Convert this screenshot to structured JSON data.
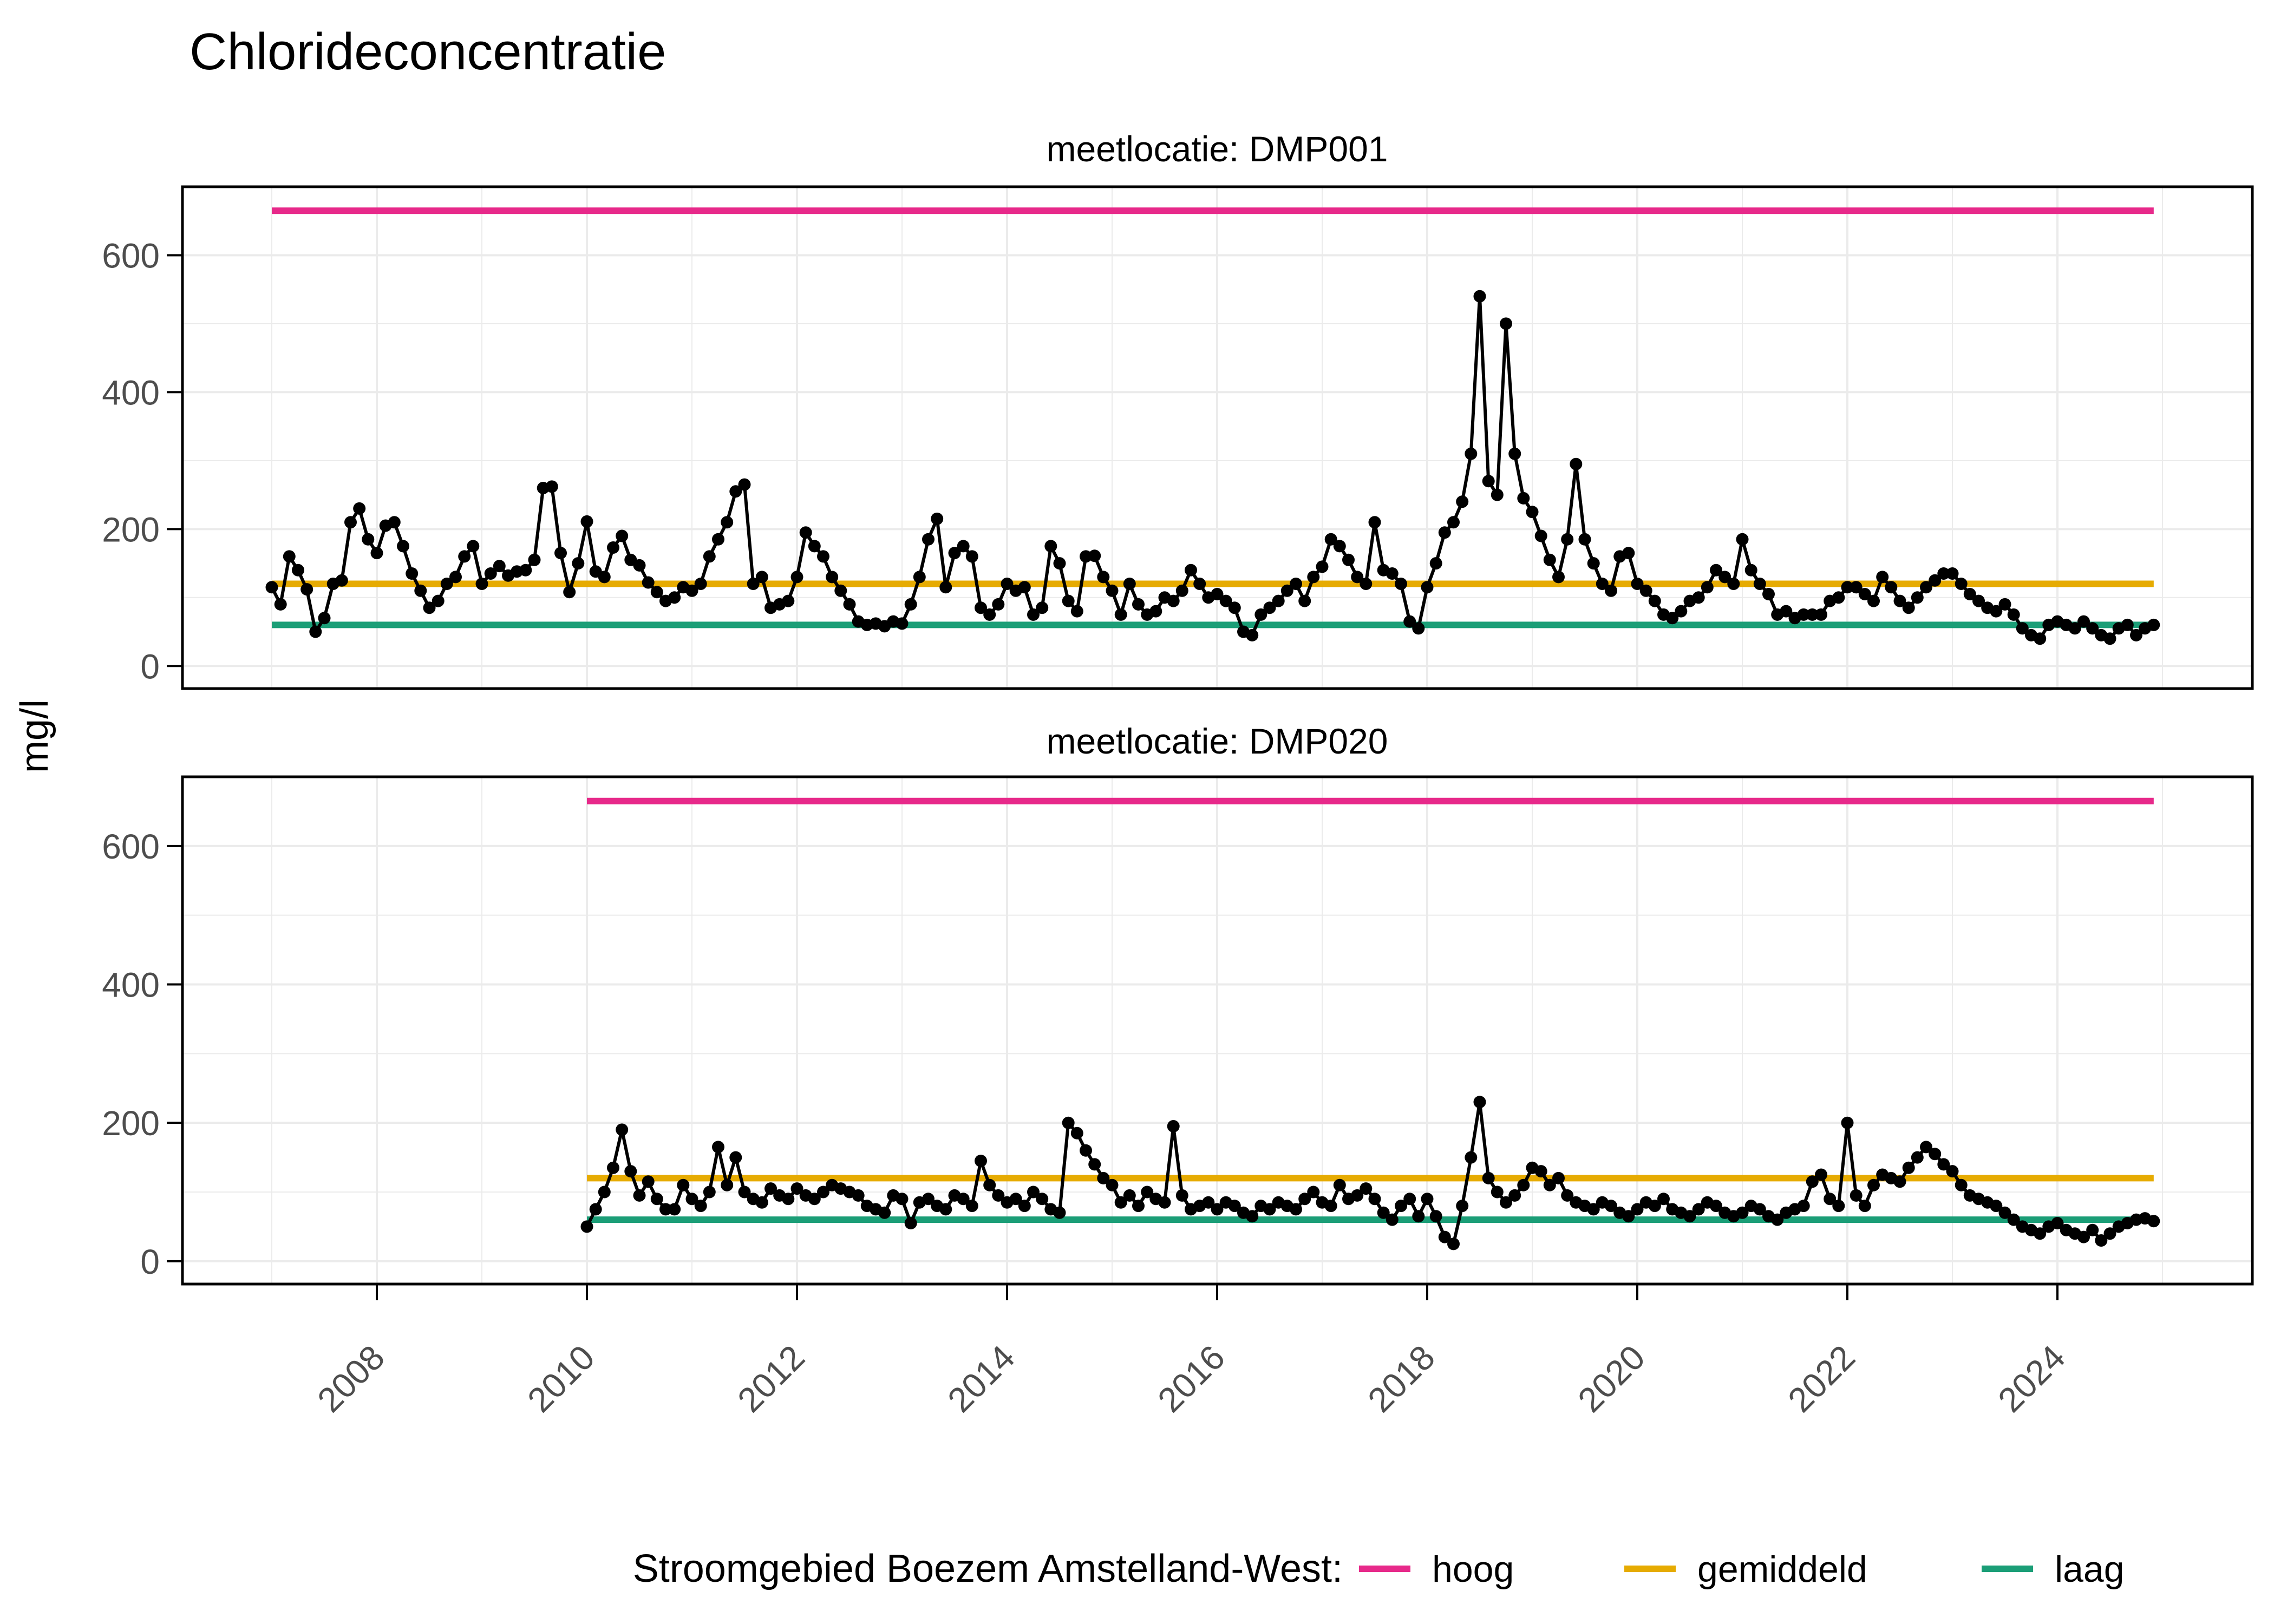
{
  "title": "Chlorideconcentratie",
  "y_axis_label": "mg/l",
  "facets": [
    {
      "label": "meetlocatie: DMP001"
    },
    {
      "label": "meetlocatie: DMP020"
    }
  ],
  "legend": {
    "title": "Stroomgebied Boezem Amstelland-West:",
    "items": [
      {
        "label": "hoog",
        "color": "#E7298A"
      },
      {
        "label": "gemiddeld",
        "color": "#E6AB02"
      },
      {
        "label": "laag",
        "color": "#1B9E77"
      }
    ]
  },
  "colors": {
    "hoog": "#E7298A",
    "gemiddeld": "#E6AB02",
    "laag": "#1B9E77",
    "points": "#000000",
    "grid": "#EBEBEB",
    "axis_text": "#4D4D4D"
  },
  "chart_data": {
    "type": "line",
    "title": "Chlorideconcentratie",
    "ylabel": "mg/l",
    "xlabel": "",
    "ylim": [
      -33,
      700
    ],
    "x_major_years": [
      2008,
      2010,
      2012,
      2014,
      2016,
      2018,
      2020,
      2022,
      2024
    ],
    "x_minor_years": [
      2007,
      2009,
      2011,
      2013,
      2015,
      2017,
      2019,
      2021,
      2023,
      2025
    ],
    "y_major": [
      0,
      200,
      400,
      600
    ],
    "y_minor": [
      100,
      300,
      500
    ],
    "x_tick_labels": [
      "2008",
      "2010",
      "2012",
      "2014",
      "2016",
      "2018",
      "2020",
      "2022",
      "2024"
    ],
    "y_tick_labels": [
      "0",
      "200",
      "400",
      "600"
    ],
    "reference_lines": [
      {
        "name": "hoog",
        "value": 665,
        "color": "#E7298A"
      },
      {
        "name": "gemiddeld",
        "value": 120,
        "color": "#E6AB02"
      },
      {
        "name": "laag",
        "value": 60,
        "color": "#1B9E77"
      }
    ],
    "series": [
      {
        "name": "meetlocatie: DMP001",
        "facet": "DMP001",
        "start_year": 2007,
        "cadence": "monthly",
        "monthly_values": [
          115,
          90,
          160,
          140,
          112,
          50,
          70,
          120,
          125,
          210,
          230,
          185,
          165,
          205,
          210,
          175,
          135,
          110,
          85,
          95,
          120,
          130,
          160,
          175,
          120,
          135,
          146,
          132,
          138,
          140,
          155,
          260,
          262,
          165,
          108,
          150,
          211,
          138,
          130,
          173,
          190,
          155,
          147,
          122,
          108,
          95,
          100,
          115,
          110,
          120,
          160,
          185,
          210,
          255,
          265,
          120,
          130,
          85,
          90,
          95,
          130,
          195,
          175,
          160,
          130,
          110,
          90,
          65,
          60,
          62,
          58,
          65,
          62,
          90,
          130,
          185,
          215,
          115,
          165,
          175,
          160,
          85,
          75,
          90,
          120,
          110,
          115,
          75,
          85,
          175,
          150,
          95,
          80,
          160,
          161,
          130,
          110,
          75,
          120,
          90,
          75,
          80,
          100,
          95,
          110,
          140,
          120,
          100,
          105,
          95,
          85,
          50,
          45,
          75,
          85,
          95,
          110,
          120,
          95,
          130,
          145,
          185,
          175,
          155,
          130,
          120,
          210,
          140,
          135,
          120,
          65,
          55,
          115,
          150,
          195,
          210,
          240,
          310,
          540,
          270,
          250,
          500,
          310,
          245,
          225,
          190,
          155,
          130,
          185,
          295,
          185,
          150,
          120,
          110,
          160,
          165,
          120,
          110,
          95,
          75,
          70,
          80,
          95,
          100,
          115,
          140,
          130,
          120,
          185,
          140,
          120,
          105,
          75,
          80,
          70,
          75,
          75,
          75,
          95,
          100,
          115,
          115,
          105,
          95,
          130,
          115,
          95,
          85,
          100,
          115,
          125,
          135,
          135,
          120,
          105,
          95,
          85,
          80,
          90,
          75,
          55,
          45,
          40,
          60,
          65,
          60,
          55,
          65,
          55,
          45,
          40,
          55,
          60,
          45,
          55,
          60
        ]
      },
      {
        "name": "meetlocatie: DMP020",
        "facet": "DMP020",
        "start_year": 2010,
        "cadence": "monthly",
        "monthly_values": [
          50,
          75,
          100,
          135,
          190,
          130,
          95,
          115,
          90,
          75,
          75,
          110,
          90,
          80,
          100,
          165,
          110,
          150,
          100,
          90,
          85,
          105,
          95,
          90,
          105,
          95,
          90,
          100,
          110,
          105,
          100,
          95,
          80,
          75,
          70,
          95,
          90,
          55,
          85,
          90,
          80,
          75,
          95,
          90,
          80,
          145,
          110,
          95,
          85,
          90,
          80,
          100,
          90,
          75,
          70,
          200,
          185,
          160,
          140,
          120,
          110,
          85,
          95,
          80,
          100,
          90,
          85,
          195,
          95,
          75,
          80,
          85,
          75,
          85,
          80,
          70,
          65,
          80,
          75,
          85,
          80,
          75,
          90,
          100,
          85,
          80,
          110,
          90,
          95,
          105,
          90,
          70,
          60,
          80,
          90,
          65,
          90,
          65,
          35,
          25,
          80,
          150,
          230,
          120,
          100,
          85,
          95,
          110,
          135,
          130,
          110,
          120,
          95,
          85,
          80,
          75,
          85,
          80,
          70,
          65,
          75,
          85,
          80,
          90,
          75,
          70,
          65,
          75,
          85,
          80,
          70,
          65,
          70,
          80,
          75,
          65,
          60,
          70,
          75,
          80,
          115,
          125,
          90,
          80,
          200,
          95,
          80,
          110,
          125,
          120,
          115,
          135,
          150,
          165,
          155,
          140,
          130,
          110,
          95,
          90,
          85,
          80,
          70,
          60,
          50,
          45,
          40,
          50,
          55,
          45,
          40,
          35,
          45,
          30,
          40,
          50,
          55,
          60,
          62,
          58
        ]
      }
    ]
  }
}
